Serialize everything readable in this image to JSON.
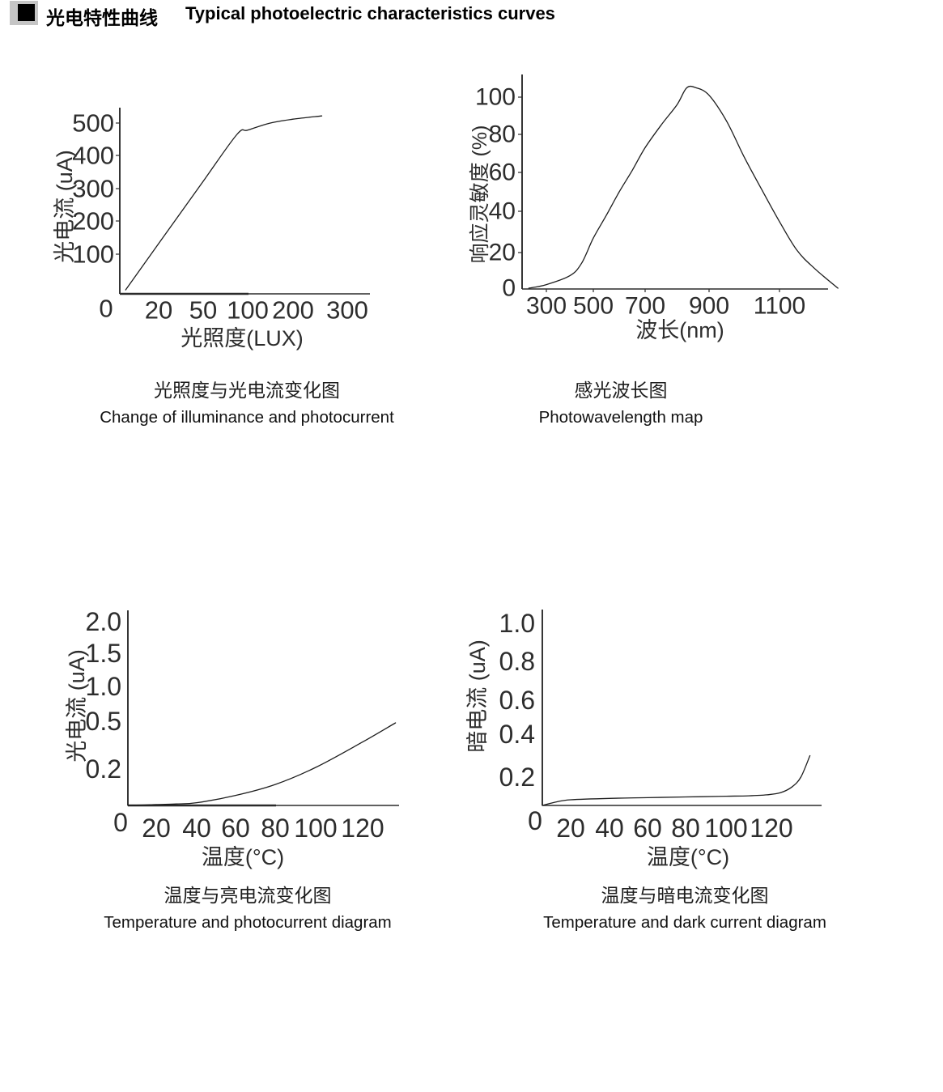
{
  "colors": {
    "background": "#ffffff",
    "ink": "#1a1a1a",
    "axis": "#2b2b2b",
    "curve": "#1d1d1d",
    "tick_text": "#2d2d2d",
    "bullet_gray": "#c5c5c5",
    "bullet_black": "#000000"
  },
  "header": {
    "bullet_icon": "black-square-on-gray",
    "title_zh": "光电特性曲线",
    "title_en": "Typical photoelectric characteristics curves"
  },
  "chart_data": [
    {
      "id": "illuminance-vs-photocurrent",
      "type": "line",
      "caption_zh": "光照度与光电流变化图",
      "caption_en": "Change of illuminance and photocurrent",
      "xlabel": "光照度(LUX)",
      "ylabel": "光电流 (uA)",
      "origin_label": "0",
      "x_tick_values": [
        0,
        20,
        50,
        100,
        200,
        300
      ],
      "x_tick_labels": [
        "20",
        "50",
        "100",
        "200",
        "300"
      ],
      "y_tick_values": [
        0,
        100,
        200,
        300,
        400,
        500
      ],
      "y_tick_labels": [
        "100",
        "200",
        "300",
        "400",
        "500"
      ],
      "xlim": [
        0,
        345
      ],
      "ylim": [
        0,
        590
      ],
      "grid": false,
      "legend": "none",
      "series": [
        {
          "name": "photocurrent",
          "x": [
            3,
            20,
            50,
            88,
            100,
            150,
            200,
            253
          ],
          "y": [
            10,
            132,
            322,
            465,
            478,
            500,
            512,
            522
          ]
        }
      ]
    },
    {
      "id": "spectral-response",
      "type": "line",
      "caption_zh": "感光波长图",
      "caption_en": "Photowavelength map",
      "xlabel": "波长(nm)",
      "ylabel": "响应灵敏度 (%)",
      "origin_label": null,
      "x_tick_values": [
        300,
        500,
        700,
        900,
        1100
      ],
      "x_tick_labels": [
        "300",
        "500",
        "700",
        "900",
        "1100"
      ],
      "y_tick_values": [
        0,
        20,
        40,
        60,
        80,
        100
      ],
      "y_tick_labels": [
        "0",
        "20",
        "40",
        "60",
        "80",
        "100"
      ],
      "xlim": [
        225,
        1280
      ],
      "ylim": [
        0,
        110
      ],
      "grid": false,
      "legend": "none",
      "series": [
        {
          "name": "relative-sensitivity",
          "x": [
            225,
            300,
            400,
            450,
            500,
            550,
            600,
            650,
            700,
            750,
            800,
            830,
            860,
            900,
            950,
            1000,
            1050,
            1100,
            1150,
            1200,
            1266
          ],
          "y": [
            0,
            2,
            7,
            14,
            27,
            38,
            50,
            61,
            73,
            85,
            96,
            105,
            105,
            101,
            87,
            68,
            51,
            35,
            21,
            11,
            0
          ]
        }
      ]
    },
    {
      "id": "temperature-vs-photocurrent",
      "type": "line",
      "caption_zh": "温度与亮电流变化图",
      "caption_en": "Temperature and photocurrent diagram",
      "xlabel": "温度(°C)",
      "ylabel": "光电流 (uA)",
      "origin_label": "0",
      "x_tick_values": [
        0,
        20,
        40,
        60,
        80,
        100,
        120
      ],
      "x_tick_labels": [
        "20",
        "40",
        "60",
        "80",
        "100",
        "120"
      ],
      "y_tick_values": [
        0,
        0.2,
        0.5,
        1.0,
        1.5,
        2.0
      ],
      "y_tick_labels": [
        "0.2",
        "0.5",
        "1.0",
        "1.5",
        "2.0"
      ],
      "xlim": [
        0,
        135
      ],
      "ylim": [
        0,
        2.0
      ],
      "grid": false,
      "legend": "none",
      "series": [
        {
          "name": "light-current",
          "x": [
            0,
            10,
            20,
            30,
            40,
            60,
            80,
            100,
            120,
            134
          ],
          "y": [
            0,
            0.002,
            0.005,
            0.008,
            0.015,
            0.055,
            0.115,
            0.21,
            0.37,
            0.49
          ]
        }
      ]
    },
    {
      "id": "temperature-vs-dark-current",
      "type": "line",
      "caption_zh": "温度与暗电流变化图",
      "caption_en": "Temperature and dark current diagram",
      "xlabel": "温度(°C)",
      "ylabel": "暗电流 (uA)",
      "origin_label": "0",
      "x_tick_values": [
        0,
        20,
        40,
        60,
        80,
        100,
        120
      ],
      "x_tick_labels": [
        "20",
        "40",
        "60",
        "80",
        "100",
        "120"
      ],
      "y_tick_values": [
        0,
        0.2,
        0.4,
        0.6,
        0.8,
        1.0
      ],
      "y_tick_labels": [
        "0.2",
        "0.4",
        "0.6",
        "0.8",
        "1.0"
      ],
      "xlim": [
        0,
        140
      ],
      "ylim": [
        0,
        1.0
      ],
      "grid": false,
      "legend": "none",
      "series": [
        {
          "name": "dark-current",
          "x": [
            0,
            10,
            20,
            40,
            60,
            80,
            100,
            110,
            118,
            124,
            129,
            133,
            137
          ],
          "y": [
            0,
            0.025,
            0.04,
            0.05,
            0.055,
            0.06,
            0.065,
            0.068,
            0.075,
            0.09,
            0.13,
            0.2,
            0.3
          ]
        }
      ]
    }
  ]
}
